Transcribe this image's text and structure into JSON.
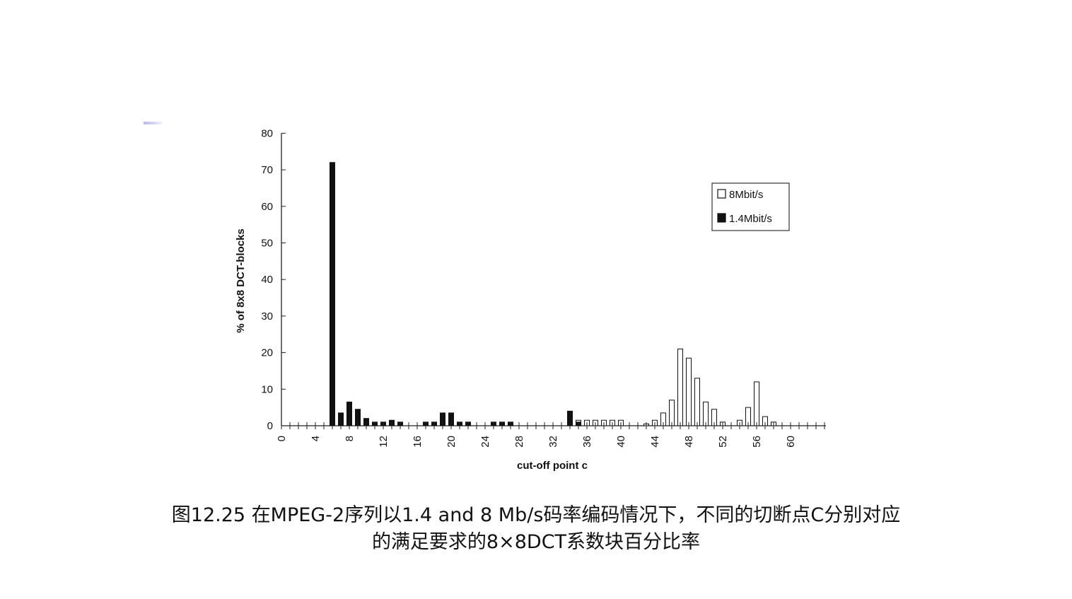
{
  "caption": {
    "line1": "图12.25 在MPEG-2序列以1.4 and 8 Mb/s码率编码情况下，不同的切断点C分别对应",
    "line2": "的满足要求的8×8DCT系数块百分比率"
  },
  "chart_data": {
    "type": "bar",
    "xlabel": "cut-off point c",
    "ylabel": "% of 8x8 DCT-blocks",
    "ylim": [
      0,
      80
    ],
    "yticks": [
      0,
      10,
      20,
      30,
      40,
      50,
      60,
      70,
      80
    ],
    "xlim": [
      0,
      64
    ],
    "xticks": [
      0,
      4,
      8,
      12,
      16,
      20,
      24,
      28,
      32,
      36,
      40,
      44,
      48,
      52,
      56,
      60
    ],
    "legend_position": "top-right",
    "series": [
      {
        "name": "8Mbit/s",
        "fill": "#ffffff",
        "x": [
          35,
          36,
          37,
          38,
          39,
          40,
          43,
          44,
          45,
          46,
          47,
          48,
          49,
          50,
          51,
          52,
          54,
          55,
          56,
          57,
          58
        ],
        "values": [
          1.5,
          1.5,
          1.5,
          1.5,
          1.5,
          1.5,
          0.5,
          1.5,
          3.5,
          7,
          21,
          18.5,
          13,
          6.5,
          4.5,
          1,
          1.5,
          5,
          12,
          2.5,
          1
        ]
      },
      {
        "name": "1.4Mbit/s",
        "fill": "#111111",
        "x": [
          6,
          7,
          8,
          9,
          10,
          11,
          12,
          13,
          14,
          17,
          18,
          19,
          20,
          21,
          22,
          25,
          26,
          27,
          34,
          35
        ],
        "values": [
          72,
          3.5,
          6.5,
          4.5,
          2,
          1,
          1,
          1.5,
          1,
          1,
          1,
          3.5,
          3.5,
          1,
          1,
          1,
          1,
          1,
          4,
          1
        ]
      }
    ]
  }
}
